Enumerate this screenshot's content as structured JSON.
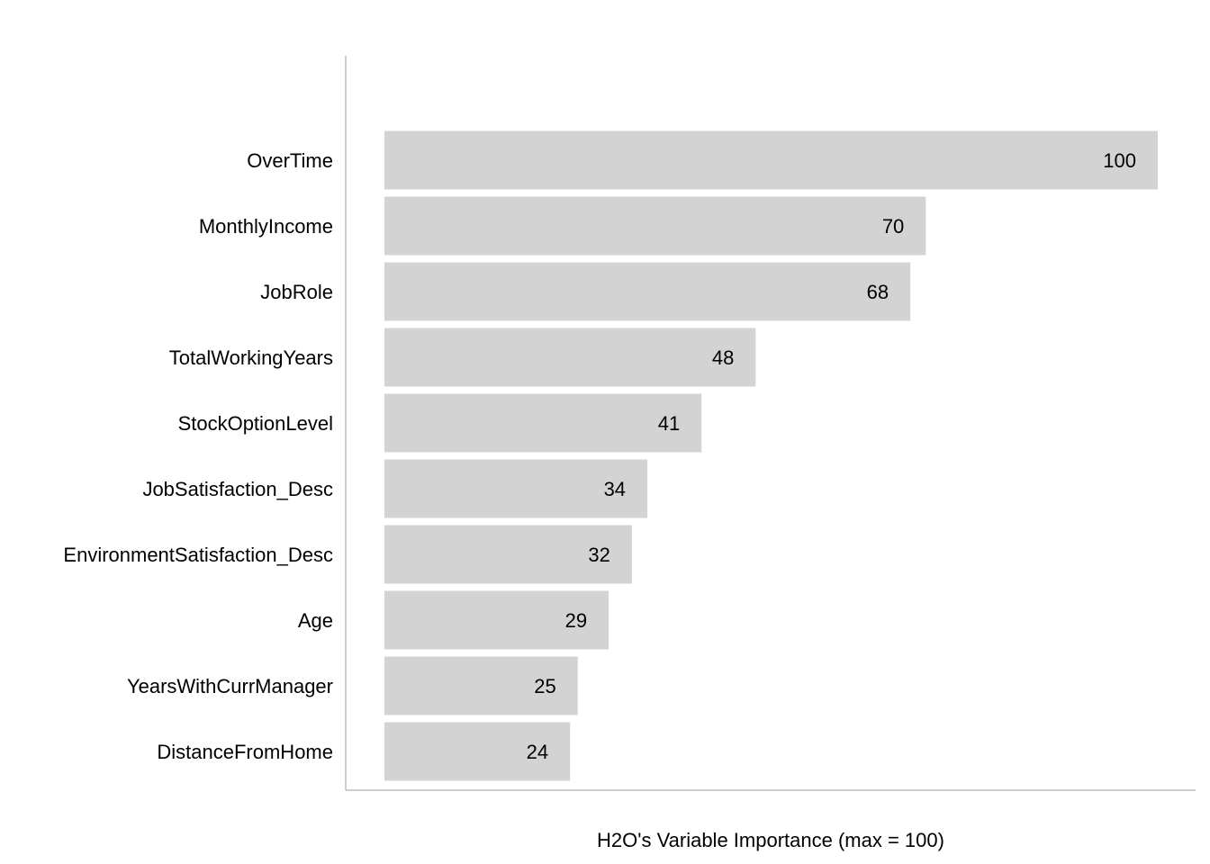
{
  "chart_data": {
    "type": "bar",
    "orientation": "horizontal",
    "categories": [
      "OverTime",
      "MonthlyIncome",
      "JobRole",
      "TotalWorkingYears",
      "StockOptionLevel",
      "JobSatisfaction_Desc",
      "EnvironmentSatisfaction_Desc",
      "Age",
      "YearsWithCurrManager",
      "DistanceFromHome"
    ],
    "values": [
      100,
      70,
      68,
      48,
      41,
      34,
      32,
      29,
      25,
      24
    ],
    "value_labels": [
      "100",
      "70",
      "68",
      "48",
      "41",
      "34",
      "32",
      "29",
      "25",
      "24"
    ],
    "title": "",
    "xlabel": "H2O's Variable Importance (max = 100)",
    "ylabel": "",
    "xlim": [
      0,
      100
    ],
    "grid": false,
    "legend": "none",
    "bar_color": "#d3d3d3",
    "axis_color": "#bdbdbd"
  }
}
